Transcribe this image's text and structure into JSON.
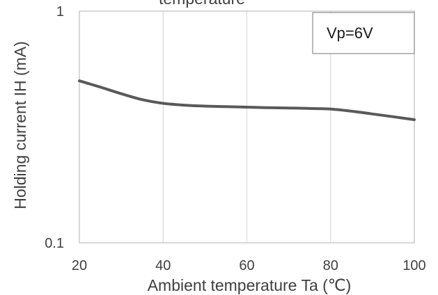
{
  "chart_data": {
    "type": "line",
    "title": "temperature",
    "xlabel": "Ambient temperature Ta (℃)",
    "ylabel": "Holding current IH (mA)",
    "xlim": [
      20,
      100
    ],
    "ylim": [
      0.1,
      1
    ],
    "yscale": "log",
    "x_ticks": [
      "20",
      "40",
      "60",
      "80",
      "100"
    ],
    "y_ticks": [
      "0.1",
      "1"
    ],
    "grid": "vertical",
    "annotation": "Vp=6V",
    "line_color": "#595959",
    "series": [
      {
        "x": [
          20,
          25,
          30,
          35,
          40,
          45,
          50,
          55,
          60,
          65,
          70,
          75,
          80,
          85,
          90,
          95,
          100
        ],
        "values": [
          0.5,
          0.47,
          0.44,
          0.415,
          0.4,
          0.393,
          0.389,
          0.387,
          0.385,
          0.383,
          0.382,
          0.38,
          0.378,
          0.37,
          0.36,
          0.35,
          0.34
        ]
      }
    ]
  }
}
